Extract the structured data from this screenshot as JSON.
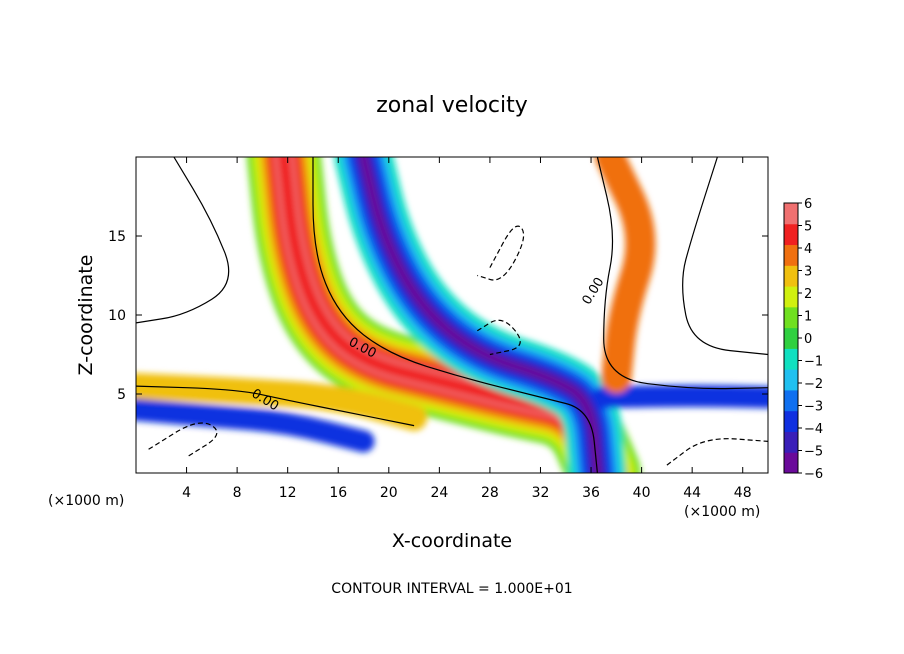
{
  "chart_data": {
    "type": "heatmap",
    "title": "zonal velocity",
    "xlabel": "X-coordinate",
    "ylabel": "Z-coordinate",
    "x_unit_left": "(×1000 m)",
    "x_unit_right": "(×1000 m)",
    "footer": "CONTOUR INTERVAL = 1.000E+01",
    "xlim": [
      0,
      50
    ],
    "ylim": [
      0,
      20
    ],
    "x_ticks": [
      4,
      8,
      12,
      16,
      20,
      24,
      28,
      32,
      36,
      40,
      44,
      48
    ],
    "y_ticks": [
      5,
      10,
      15
    ],
    "colorbar": {
      "range": [
        -6,
        6
      ],
      "ticks": [
        6,
        5,
        4,
        3,
        2,
        1,
        0,
        -1,
        -2,
        -3,
        -4,
        -5,
        -6
      ],
      "colors": [
        "#6a0a9a",
        "#3a1fb8",
        "#1030e0",
        "#1070f0",
        "#20c0f0",
        "#10e0c0",
        "#30d040",
        "#70e020",
        "#d0f010",
        "#f0c010",
        "#f07010",
        "#f02020",
        "#f07070"
      ]
    },
    "contour_labels": [
      {
        "text": "0.00",
        "x": 17.9,
        "y": 7.9,
        "angle": 28
      },
      {
        "text": "0.00",
        "x": 10.2,
        "y": 4.6,
        "angle": 32
      },
      {
        "text": "0.00",
        "x": 36.2,
        "y": 11.5,
        "angle": -58
      }
    ],
    "fields": {
      "positive_jets": [
        {
          "x": 11.7,
          "y": 20.0
        },
        {
          "x": 12.5,
          "y": 14.0
        },
        {
          "x": 14.5,
          "y": 9.5
        },
        {
          "x": 18.0,
          "y": 7.0
        },
        {
          "x": 24.0,
          "y": 5.8
        },
        {
          "x": 30.0,
          "y": 4.6
        },
        {
          "x": 35.0,
          "y": 3.8
        },
        {
          "x": 37.0,
          "y": 0.0
        }
      ],
      "negative_jets": [
        {
          "x": 18.0,
          "y": 20.0
        },
        {
          "x": 19.5,
          "y": 15.0
        },
        {
          "x": 22.5,
          "y": 10.5
        },
        {
          "x": 27.0,
          "y": 7.5
        },
        {
          "x": 33.0,
          "y": 6.0
        },
        {
          "x": 36.0,
          "y": 4.5
        },
        {
          "x": 36.5,
          "y": 0.0
        }
      ]
    }
  }
}
